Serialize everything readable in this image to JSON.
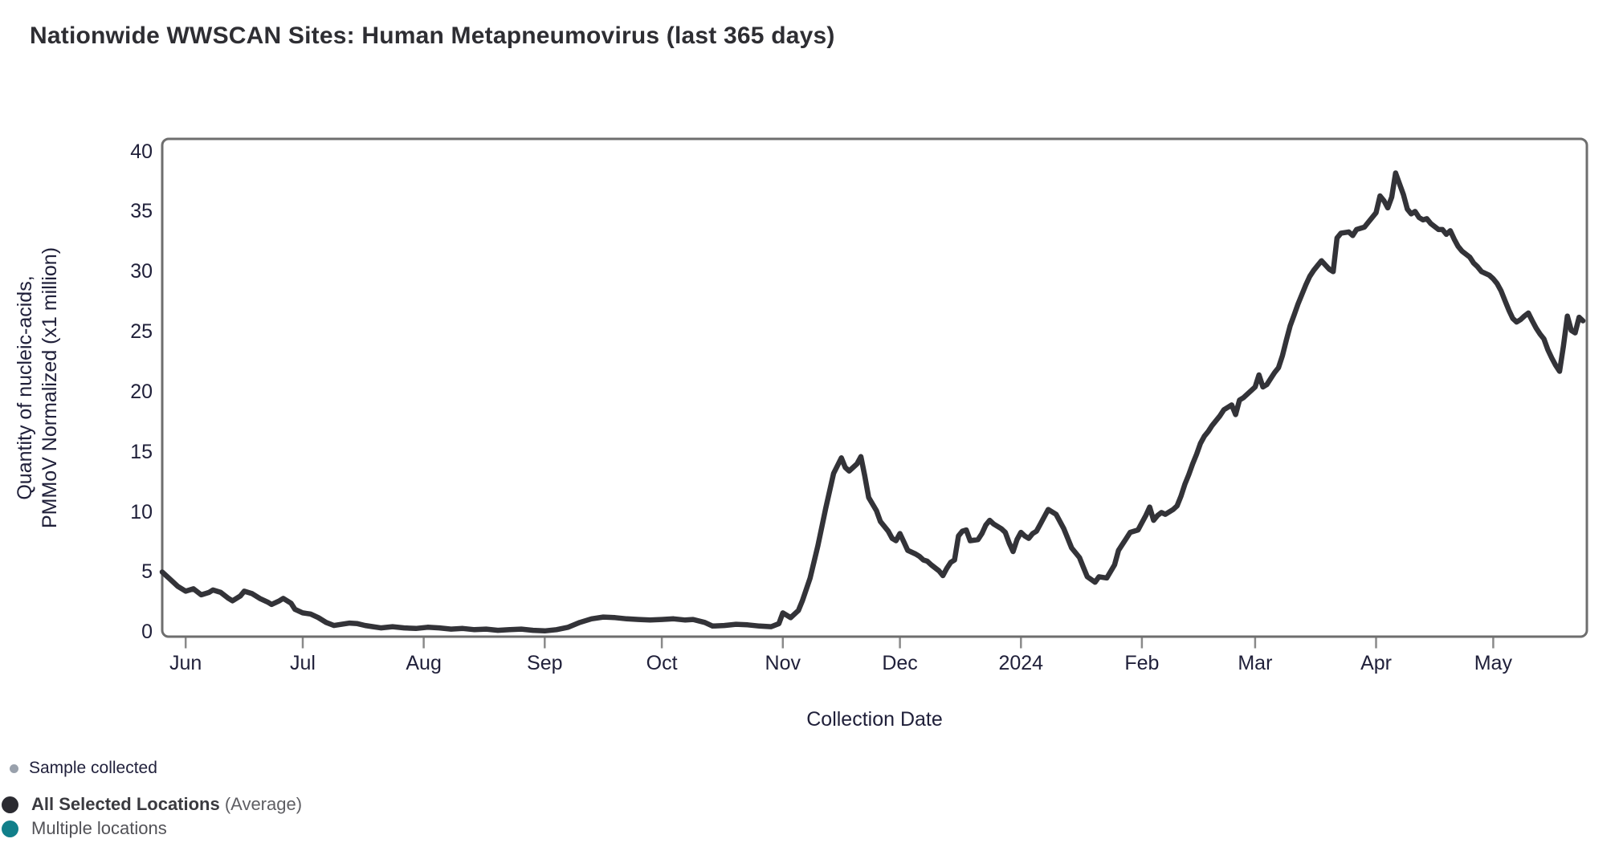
{
  "title": "Nationwide WWSCAN Sites: Human Metapneumovirus (last 365 days)",
  "axes": {
    "y_label_line1": "Quantity of nucleic-acids,",
    "y_label_line2": "PMMoV Normalized (x1 million)",
    "x_label": "Collection Date"
  },
  "legend": {
    "items": [
      {
        "label": "Sample collected",
        "color": "#99a1ac"
      },
      {
        "label": "All Selected Locations",
        "suffix": " (Average)",
        "color": "#2b2b31"
      },
      {
        "label": "Multiple locations",
        "color": "#117f8a"
      }
    ]
  },
  "colors": {
    "line": "#333338",
    "plot_border": "#6e6e6e",
    "tick_mark": "#8a8a8a",
    "axis_text": "#20203a",
    "title_text": "#2e2e33"
  },
  "chart_data": {
    "type": "line",
    "title": "Nationwide WWSCAN Sites: Human Metapneumovirus (last 365 days)",
    "xlabel": "Collection Date",
    "ylabel": "Quantity of nucleic-acids, PMMoV Normalized (x1 million)",
    "ylim": [
      0,
      40
    ],
    "y_ticks": [
      0,
      5,
      10,
      15,
      20,
      25,
      30,
      35,
      40
    ],
    "grid": false,
    "legend_position": "bottom-left",
    "x_start": "2023-05-26",
    "x_span_days": 365,
    "x_ticks": [
      {
        "label": "Jun",
        "date": "2023-06-01"
      },
      {
        "label": "Jul",
        "date": "2023-07-01"
      },
      {
        "label": "Aug",
        "date": "2023-08-01"
      },
      {
        "label": "Sep",
        "date": "2023-09-01"
      },
      {
        "label": "Oct",
        "date": "2023-10-01"
      },
      {
        "label": "Nov",
        "date": "2023-11-01"
      },
      {
        "label": "Dec",
        "date": "2023-12-01"
      },
      {
        "label": "2024",
        "date": "2024-01-01"
      },
      {
        "label": "Feb",
        "date": "2024-02-01"
      },
      {
        "label": "Mar",
        "date": "2024-03-01"
      },
      {
        "label": "Apr",
        "date": "2024-04-01"
      },
      {
        "label": "May",
        "date": "2024-05-01"
      }
    ],
    "series": [
      {
        "name": "All Selected Locations (Average)",
        "color": "#333338",
        "points": [
          [
            "2023-05-26",
            5.0
          ],
          [
            "2023-05-28",
            4.4
          ],
          [
            "2023-05-30",
            3.8
          ],
          [
            "2023-06-01",
            3.4
          ],
          [
            "2023-06-03",
            3.6
          ],
          [
            "2023-06-05",
            3.1
          ],
          [
            "2023-06-07",
            3.3
          ],
          [
            "2023-06-08",
            3.5
          ],
          [
            "2023-06-10",
            3.3
          ],
          [
            "2023-06-12",
            2.8
          ],
          [
            "2023-06-13",
            2.6
          ],
          [
            "2023-06-15",
            3.0
          ],
          [
            "2023-06-16",
            3.4
          ],
          [
            "2023-06-18",
            3.2
          ],
          [
            "2023-06-20",
            2.8
          ],
          [
            "2023-06-22",
            2.5
          ],
          [
            "2023-06-23",
            2.3
          ],
          [
            "2023-06-25",
            2.6
          ],
          [
            "2023-06-26",
            2.8
          ],
          [
            "2023-06-28",
            2.4
          ],
          [
            "2023-06-29",
            1.9
          ],
          [
            "2023-07-01",
            1.6
          ],
          [
            "2023-07-03",
            1.5
          ],
          [
            "2023-07-05",
            1.2
          ],
          [
            "2023-07-07",
            0.8
          ],
          [
            "2023-07-09",
            0.55
          ],
          [
            "2023-07-11",
            0.65
          ],
          [
            "2023-07-13",
            0.75
          ],
          [
            "2023-07-15",
            0.7
          ],
          [
            "2023-07-17",
            0.55
          ],
          [
            "2023-07-19",
            0.45
          ],
          [
            "2023-07-21",
            0.35
          ],
          [
            "2023-07-24",
            0.45
          ],
          [
            "2023-07-27",
            0.35
          ],
          [
            "2023-07-30",
            0.3
          ],
          [
            "2023-08-02",
            0.4
          ],
          [
            "2023-08-05",
            0.35
          ],
          [
            "2023-08-08",
            0.25
          ],
          [
            "2023-08-11",
            0.3
          ],
          [
            "2023-08-14",
            0.2
          ],
          [
            "2023-08-17",
            0.25
          ],
          [
            "2023-08-20",
            0.15
          ],
          [
            "2023-08-23",
            0.2
          ],
          [
            "2023-08-26",
            0.25
          ],
          [
            "2023-08-29",
            0.15
          ],
          [
            "2023-09-01",
            0.1
          ],
          [
            "2023-09-04",
            0.2
          ],
          [
            "2023-09-07",
            0.4
          ],
          [
            "2023-09-10",
            0.8
          ],
          [
            "2023-09-13",
            1.1
          ],
          [
            "2023-09-16",
            1.25
          ],
          [
            "2023-09-19",
            1.2
          ],
          [
            "2023-09-22",
            1.1
          ],
          [
            "2023-09-25",
            1.05
          ],
          [
            "2023-09-28",
            1.0
          ],
          [
            "2023-10-01",
            1.05
          ],
          [
            "2023-10-04",
            1.1
          ],
          [
            "2023-10-07",
            1.0
          ],
          [
            "2023-10-09",
            1.05
          ],
          [
            "2023-10-12",
            0.8
          ],
          [
            "2023-10-14",
            0.5
          ],
          [
            "2023-10-17",
            0.55
          ],
          [
            "2023-10-20",
            0.65
          ],
          [
            "2023-10-23",
            0.6
          ],
          [
            "2023-10-26",
            0.5
          ],
          [
            "2023-10-29",
            0.45
          ],
          [
            "2023-10-31",
            0.7
          ],
          [
            "2023-11-01",
            1.6
          ],
          [
            "2023-11-03",
            1.2
          ],
          [
            "2023-11-05",
            1.8
          ],
          [
            "2023-11-06",
            2.6
          ],
          [
            "2023-11-08",
            4.5
          ],
          [
            "2023-11-10",
            7.2
          ],
          [
            "2023-11-12",
            10.3
          ],
          [
            "2023-11-14",
            13.2
          ],
          [
            "2023-11-16",
            14.5
          ],
          [
            "2023-11-17",
            13.7
          ],
          [
            "2023-11-18",
            13.4
          ],
          [
            "2023-11-20",
            14.0
          ],
          [
            "2023-11-21",
            14.6
          ],
          [
            "2023-11-22",
            13.0
          ],
          [
            "2023-11-23",
            11.2
          ],
          [
            "2023-11-25",
            10.1
          ],
          [
            "2023-11-26",
            9.2
          ],
          [
            "2023-11-28",
            8.4
          ],
          [
            "2023-11-29",
            7.8
          ],
          [
            "2023-11-30",
            7.6
          ],
          [
            "2023-12-01",
            8.2
          ],
          [
            "2023-12-02",
            7.5
          ],
          [
            "2023-12-03",
            6.8
          ],
          [
            "2023-12-05",
            6.5
          ],
          [
            "2023-12-06",
            6.3
          ],
          [
            "2023-12-07",
            6.0
          ],
          [
            "2023-12-08",
            5.9
          ],
          [
            "2023-12-09",
            5.6
          ],
          [
            "2023-12-11",
            5.1
          ],
          [
            "2023-12-12",
            4.7
          ],
          [
            "2023-12-13",
            5.3
          ],
          [
            "2023-12-14",
            5.8
          ],
          [
            "2023-12-15",
            6.0
          ],
          [
            "2023-12-16",
            8.0
          ],
          [
            "2023-12-17",
            8.4
          ],
          [
            "2023-12-18",
            8.5
          ],
          [
            "2023-12-19",
            7.6
          ],
          [
            "2023-12-21",
            7.7
          ],
          [
            "2023-12-22",
            8.2
          ],
          [
            "2023-12-23",
            8.9
          ],
          [
            "2023-12-24",
            9.3
          ],
          [
            "2023-12-25",
            9.0
          ],
          [
            "2023-12-27",
            8.6
          ],
          [
            "2023-12-28",
            8.3
          ],
          [
            "2023-12-29",
            7.4
          ],
          [
            "2023-12-30",
            6.7
          ],
          [
            "2023-12-31",
            7.7
          ],
          [
            "2024-01-01",
            8.3
          ],
          [
            "2024-01-02",
            8.0
          ],
          [
            "2024-01-03",
            7.8
          ],
          [
            "2024-01-04",
            8.2
          ],
          [
            "2024-01-05",
            8.4
          ],
          [
            "2024-01-06",
            9.0
          ],
          [
            "2024-01-07",
            9.6
          ],
          [
            "2024-01-08",
            10.2
          ],
          [
            "2024-01-09",
            10.0
          ],
          [
            "2024-01-10",
            9.8
          ],
          [
            "2024-01-12",
            8.6
          ],
          [
            "2024-01-13",
            7.8
          ],
          [
            "2024-01-14",
            7.0
          ],
          [
            "2024-01-16",
            6.2
          ],
          [
            "2024-01-17",
            5.4
          ],
          [
            "2024-01-18",
            4.6
          ],
          [
            "2024-01-20",
            4.15
          ],
          [
            "2024-01-21",
            4.6
          ],
          [
            "2024-01-23",
            4.5
          ],
          [
            "2024-01-25",
            5.6
          ],
          [
            "2024-01-26",
            6.8
          ],
          [
            "2024-01-28",
            7.8
          ],
          [
            "2024-01-29",
            8.3
          ],
          [
            "2024-01-31",
            8.5
          ],
          [
            "2024-02-01",
            9.1
          ],
          [
            "2024-02-02",
            9.7
          ],
          [
            "2024-02-03",
            10.4
          ],
          [
            "2024-02-04",
            9.3
          ],
          [
            "2024-02-05",
            9.7
          ],
          [
            "2024-02-06",
            9.95
          ],
          [
            "2024-02-07",
            9.8
          ],
          [
            "2024-02-09",
            10.2
          ],
          [
            "2024-02-10",
            10.5
          ],
          [
            "2024-02-11",
            11.3
          ],
          [
            "2024-02-12",
            12.3
          ],
          [
            "2024-02-13",
            13.1
          ],
          [
            "2024-02-14",
            14.0
          ],
          [
            "2024-02-15",
            14.8
          ],
          [
            "2024-02-16",
            15.7
          ],
          [
            "2024-02-17",
            16.3
          ],
          [
            "2024-02-18",
            16.7
          ],
          [
            "2024-02-19",
            17.2
          ],
          [
            "2024-02-21",
            18.0
          ],
          [
            "2024-02-22",
            18.5
          ],
          [
            "2024-02-23",
            18.7
          ],
          [
            "2024-02-24",
            18.9
          ],
          [
            "2024-02-25",
            18.1
          ],
          [
            "2024-02-26",
            19.3
          ],
          [
            "2024-02-27",
            19.5
          ],
          [
            "2024-02-29",
            20.1
          ],
          [
            "2024-03-01",
            20.4
          ],
          [
            "2024-03-02",
            21.4
          ],
          [
            "2024-03-03",
            20.4
          ],
          [
            "2024-03-04",
            20.6
          ],
          [
            "2024-03-05",
            21.1
          ],
          [
            "2024-03-06",
            21.6
          ],
          [
            "2024-03-07",
            22.0
          ],
          [
            "2024-03-08",
            23.0
          ],
          [
            "2024-03-09",
            24.3
          ],
          [
            "2024-03-10",
            25.5
          ],
          [
            "2024-03-11",
            26.4
          ],
          [
            "2024-03-12",
            27.3
          ],
          [
            "2024-03-13",
            28.1
          ],
          [
            "2024-03-14",
            28.9
          ],
          [
            "2024-03-15",
            29.6
          ],
          [
            "2024-03-16",
            30.1
          ],
          [
            "2024-03-17",
            30.5
          ],
          [
            "2024-03-18",
            30.9
          ],
          [
            "2024-03-20",
            30.2
          ],
          [
            "2024-03-21",
            30.0
          ],
          [
            "2024-03-22",
            32.8
          ],
          [
            "2024-03-23",
            33.2
          ],
          [
            "2024-03-25",
            33.3
          ],
          [
            "2024-03-26",
            33.0
          ],
          [
            "2024-03-27",
            33.5
          ],
          [
            "2024-03-29",
            33.7
          ],
          [
            "2024-03-30",
            34.1
          ],
          [
            "2024-04-01",
            34.9
          ],
          [
            "2024-04-02",
            36.3
          ],
          [
            "2024-04-03",
            35.9
          ],
          [
            "2024-04-04",
            35.3
          ],
          [
            "2024-04-05",
            36.2
          ],
          [
            "2024-04-06",
            38.2
          ],
          [
            "2024-04-07",
            37.3
          ],
          [
            "2024-04-08",
            36.4
          ],
          [
            "2024-04-09",
            35.2
          ],
          [
            "2024-04-10",
            34.8
          ],
          [
            "2024-04-11",
            35.0
          ],
          [
            "2024-04-12",
            34.5
          ],
          [
            "2024-04-13",
            34.3
          ],
          [
            "2024-04-14",
            34.4
          ],
          [
            "2024-04-15",
            34.0
          ],
          [
            "2024-04-17",
            33.5
          ],
          [
            "2024-04-18",
            33.5
          ],
          [
            "2024-04-19",
            33.1
          ],
          [
            "2024-04-20",
            33.4
          ],
          [
            "2024-04-21",
            32.7
          ],
          [
            "2024-04-22",
            32.1
          ],
          [
            "2024-04-23",
            31.7
          ],
          [
            "2024-04-25",
            31.2
          ],
          [
            "2024-04-26",
            30.7
          ],
          [
            "2024-04-27",
            30.4
          ],
          [
            "2024-04-28",
            30.0
          ],
          [
            "2024-04-30",
            29.7
          ],
          [
            "2024-05-01",
            29.4
          ],
          [
            "2024-05-02",
            29.0
          ],
          [
            "2024-05-03",
            28.4
          ],
          [
            "2024-05-04",
            27.6
          ],
          [
            "2024-05-05",
            26.8
          ],
          [
            "2024-05-06",
            26.1
          ],
          [
            "2024-05-07",
            25.8
          ],
          [
            "2024-05-08",
            26.0
          ],
          [
            "2024-05-09",
            26.3
          ],
          [
            "2024-05-10",
            26.55
          ],
          [
            "2024-05-11",
            25.9
          ],
          [
            "2024-05-12",
            25.3
          ],
          [
            "2024-05-13",
            24.8
          ],
          [
            "2024-05-14",
            24.4
          ],
          [
            "2024-05-15",
            23.5
          ],
          [
            "2024-05-16",
            22.8
          ],
          [
            "2024-05-17",
            22.2
          ],
          [
            "2024-05-18",
            21.7
          ],
          [
            "2024-05-19",
            23.8
          ],
          [
            "2024-05-20",
            26.3
          ],
          [
            "2024-05-21",
            25.1
          ],
          [
            "2024-05-22",
            24.9
          ],
          [
            "2024-05-23",
            26.2
          ],
          [
            "2024-05-24",
            25.9
          ]
        ]
      }
    ]
  }
}
